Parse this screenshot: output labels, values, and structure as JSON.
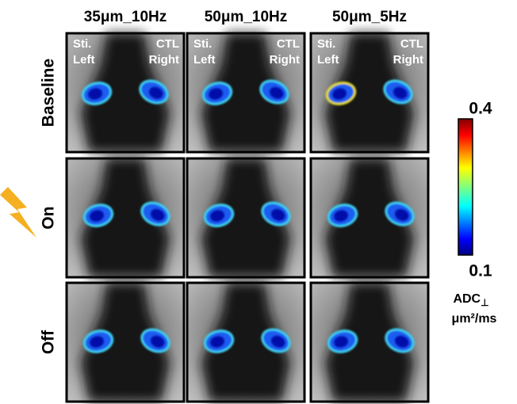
{
  "columns": [
    "35μm_10Hz",
    "50μm_10Hz",
    "50μm_5Hz"
  ],
  "rows": [
    "Baseline",
    "On",
    "Off"
  ],
  "panel_labels": [
    {
      "left_top": "Sti.",
      "left_bottom": "Left",
      "right_top": "CTL",
      "right_bottom": "Right"
    },
    {
      "left_top": "Sti.",
      "left_bottom": "Left",
      "right_top": "CTL",
      "right_bottom": "Right"
    },
    {
      "left_top": "Sti.",
      "left_bottom": "Left",
      "right_top": "CTL",
      "right_bottom": "Right"
    }
  ],
  "colorbar": {
    "max": 0.4,
    "min": 0.1,
    "label": "ADC",
    "label_subscript": "⊥",
    "unit": "μm²/ms"
  }
}
